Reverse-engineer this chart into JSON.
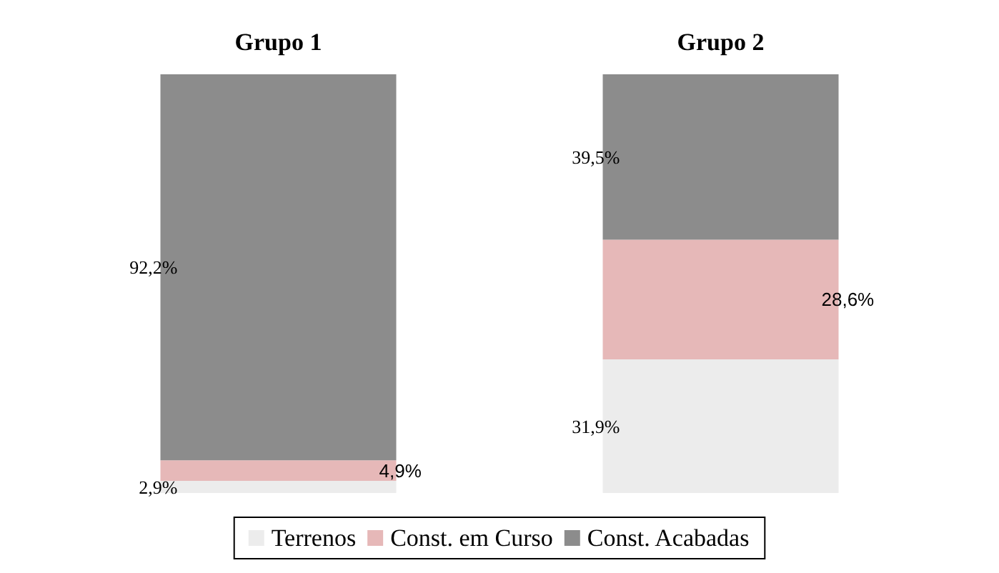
{
  "chart_data": {
    "type": "bar",
    "stacked": true,
    "categories": [
      "Grupo 1",
      "Grupo 2"
    ],
    "series": [
      {
        "name": "Terrenos",
        "color": "#ececec",
        "values": [
          2.9,
          31.9
        ],
        "value_labels": [
          "2,9%",
          "31,9%"
        ]
      },
      {
        "name": "Const. em Curso",
        "color": "#e6b8b8",
        "values": [
          4.9,
          28.6
        ],
        "value_labels": [
          "4,9%",
          "28,6%"
        ]
      },
      {
        "name": "Const. Acabadas",
        "color": "#8c8c8c",
        "values": [
          92.2,
          39.5
        ],
        "value_labels": [
          "92,2%",
          "39,5%"
        ]
      }
    ],
    "legend": "bottom"
  }
}
